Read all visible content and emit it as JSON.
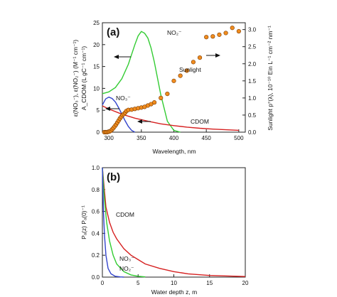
{
  "chart_data": [
    {
      "panel": "(a)",
      "type": "line",
      "xlabel": "Wavelength, nm",
      "ylabel_left_line1": "ε(NO₃⁻), ε(NO₂⁻) (M⁻¹ cm⁻¹)",
      "ylabel_left_line2": "A_CDOM (L gC⁻¹ cm⁻¹)",
      "ylabel_right_line1": "Sunlight p°(λ), 10⁻¹⁰ Ein L⁻¹ cm⁻² nm⁻¹",
      "xlim": [
        290,
        510
      ],
      "ylim_left": [
        0,
        25
      ],
      "ylim_right": [
        0,
        3.2
      ],
      "xticks": [
        300,
        350,
        400,
        450,
        500
      ],
      "yticks_left": [
        0,
        5,
        10,
        15,
        20,
        25
      ],
      "yticks_right": [
        "0.0",
        "0.5",
        "1.0",
        "1.5",
        "2.0",
        "2.5",
        "3.0"
      ],
      "series": [
        {
          "name": "NO₂⁻",
          "axis": "left",
          "color": "#33cc33",
          "x": [
            290,
            300,
            310,
            320,
            330,
            340,
            345,
            350,
            355,
            360,
            365,
            370,
            380,
            390,
            400,
            410
          ],
          "values": [
            8.8,
            9.2,
            10.2,
            12.2,
            15.5,
            20,
            22,
            23,
            22.6,
            21.5,
            19.2,
            16,
            8.5,
            2.5,
            0.4,
            0
          ]
        },
        {
          "name": "NO₃⁻",
          "axis": "left",
          "color": "#3344cc",
          "x": [
            290,
            295,
            300,
            305,
            310,
            315,
            320,
            325,
            330,
            335,
            340
          ],
          "values": [
            6.2,
            7.6,
            8,
            7.7,
            6.9,
            5.6,
            4.1,
            2.6,
            1.3,
            0.4,
            0
          ]
        },
        {
          "name": "CDOM",
          "axis": "left",
          "color": "#d62020",
          "x": [
            290,
            300,
            320,
            340,
            360,
            380,
            400,
            420,
            440,
            460,
            480,
            500
          ],
          "values": [
            6,
            5.3,
            4.1,
            3.2,
            2.5,
            1.9,
            1.5,
            1.15,
            0.9,
            0.7,
            0.55,
            0.42
          ]
        },
        {
          "name": "Sunlight",
          "axis": "right",
          "color": "#f08c1e",
          "type": "scatter",
          "x": [
            293,
            295,
            297,
            299,
            301,
            303,
            305,
            307,
            309,
            311,
            313,
            315,
            317,
            319,
            321,
            323,
            325,
            327,
            330,
            335,
            340,
            345,
            350,
            355,
            360,
            365,
            370,
            380,
            390,
            400,
            410,
            420,
            430,
            440,
            450,
            460,
            470,
            480,
            490,
            500
          ],
          "values": [
            0,
            0,
            0,
            0.01,
            0.02,
            0.04,
            0.08,
            0.12,
            0.17,
            0.22,
            0.28,
            0.34,
            0.4,
            0.45,
            0.5,
            0.53,
            0.57,
            0.62,
            0.65,
            0.66,
            0.68,
            0.7,
            0.72,
            0.74,
            0.78,
            0.82,
            0.87,
            1.0,
            1.12,
            1.5,
            1.65,
            1.8,
            2.05,
            2.18,
            2.78,
            2.8,
            2.85,
            2.9,
            3.05,
            2.95
          ]
        }
      ],
      "annotations": {
        "panel_label": "(a)",
        "no2_label": "NO₂⁻",
        "no3_label": "NO₃⁻",
        "cdom_label": "CDOM",
        "sunlight_label": "Sunlight"
      }
    },
    {
      "panel": "(b)",
      "type": "line",
      "xlabel": "Water depth z, m",
      "ylabel": "Pₐ(z) Pₐ(0)⁻¹",
      "xlim": [
        0,
        20
      ],
      "ylim": [
        0,
        1
      ],
      "xticks": [
        0,
        5,
        10,
        15,
        20
      ],
      "yticks": [
        "0.0",
        "0.2",
        "0.4",
        "0.6",
        "0.8",
        "1.0"
      ],
      "series": [
        {
          "name": "CDOM",
          "color": "#d62020",
          "x": [
            0,
            0.5,
            1,
            1.5,
            2,
            3,
            4,
            5,
            6,
            8,
            10,
            12,
            15,
            20
          ],
          "values": [
            1,
            0.64,
            0.5,
            0.41,
            0.35,
            0.26,
            0.2,
            0.16,
            0.12,
            0.08,
            0.05,
            0.03,
            0.015,
            0.005
          ]
        },
        {
          "name": "NO₃⁻",
          "color": "#33cc33",
          "x": [
            0,
            0.3,
            0.6,
            1,
            1.5,
            2,
            3,
            4,
            5,
            6
          ],
          "values": [
            1,
            0.7,
            0.5,
            0.33,
            0.2,
            0.12,
            0.05,
            0.02,
            0.008,
            0.002
          ]
        },
        {
          "name": "NO₂⁻",
          "color": "#3344cc",
          "x": [
            0,
            0.15,
            0.3,
            0.5,
            0.8,
            1.2,
            1.8,
            2.5,
            3
          ],
          "values": [
            1,
            0.6,
            0.38,
            0.2,
            0.08,
            0.03,
            0.008,
            0.002,
            0
          ]
        }
      ],
      "annotations": {
        "panel_label": "(b)",
        "cdom_label": "CDOM",
        "no3_label": "NO₃⁻",
        "no2_label": "NO₂⁻"
      }
    }
  ]
}
